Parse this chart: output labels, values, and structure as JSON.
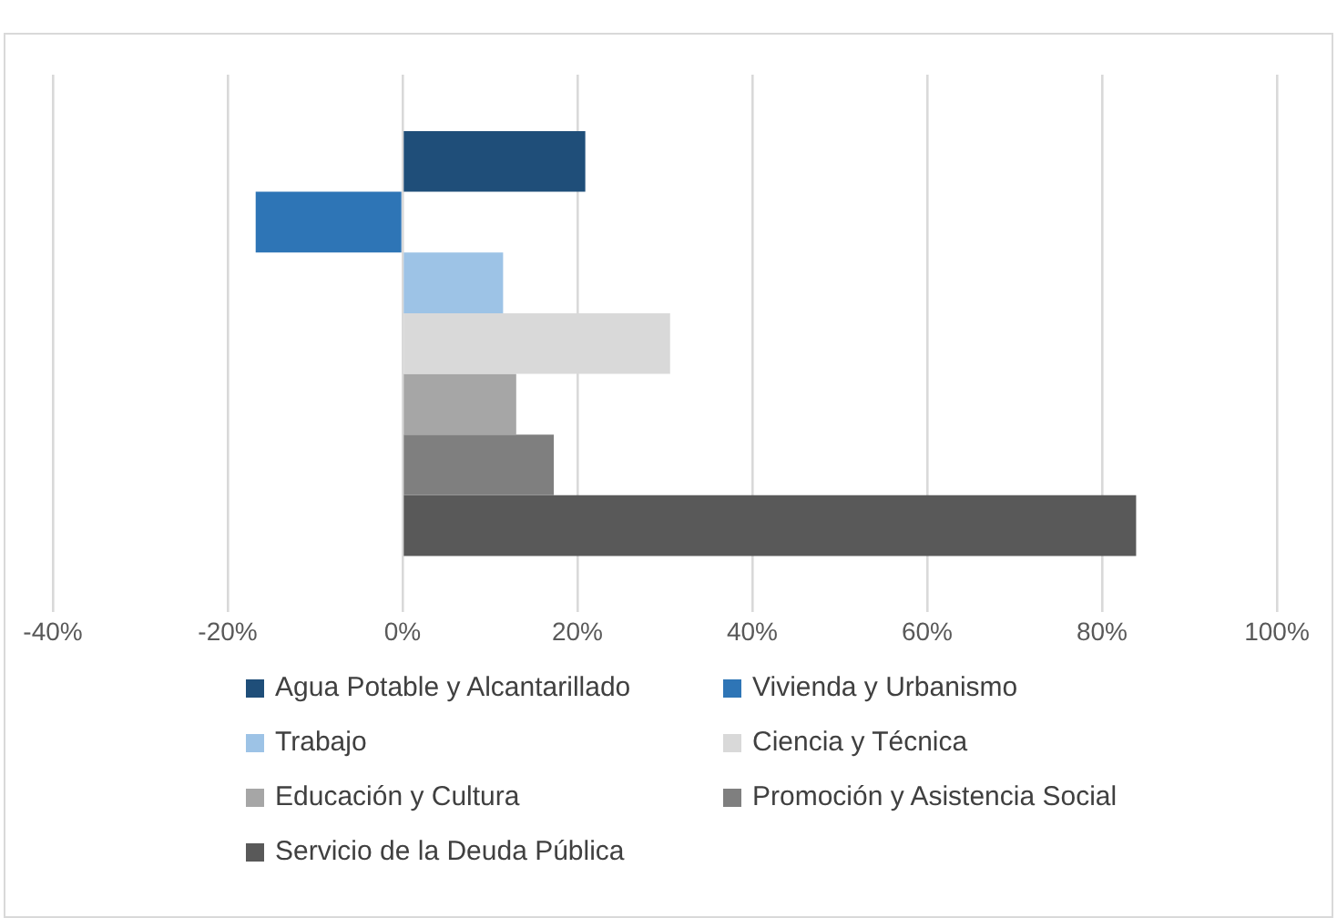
{
  "chart_data": {
    "type": "bar",
    "orientation": "horizontal",
    "categories": [
      null
    ],
    "series": [
      {
        "name": "Agua Potable y Alcantarillado",
        "color": "#1f4e79",
        "values": [
          20.9
        ]
      },
      {
        "name": "Vivienda y Urbanismo",
        "color": "#2e75b6",
        "values": [
          -16.8
        ]
      },
      {
        "name": "Trabajo",
        "color": "#9dc3e6",
        "values": [
          11.5
        ]
      },
      {
        "name": "Ciencia y Técnica",
        "color": "#d9d9d9",
        "values": [
          30.6
        ]
      },
      {
        "name": "Educación y Cultura",
        "color": "#a6a6a6",
        "values": [
          13.0
        ]
      },
      {
        "name": "Promoción y Asistencia Social",
        "color": "#7f7f7f",
        "values": [
          17.3
        ]
      },
      {
        "name": "Servicio de la Deuda Pública",
        "color": "#595959",
        "values": [
          83.9
        ]
      }
    ],
    "xlim": [
      -40,
      100
    ],
    "xticks": [
      {
        "value": -40,
        "label": "-40%"
      },
      {
        "value": -20,
        "label": "-20%"
      },
      {
        "value": 0,
        "label": "0%"
      },
      {
        "value": 20,
        "label": "20%"
      },
      {
        "value": 40,
        "label": "40%"
      },
      {
        "value": 60,
        "label": "60%"
      },
      {
        "value": 80,
        "label": "80%"
      },
      {
        "value": 100,
        "label": "100%"
      }
    ],
    "grid": "x",
    "legend": "bottom"
  }
}
